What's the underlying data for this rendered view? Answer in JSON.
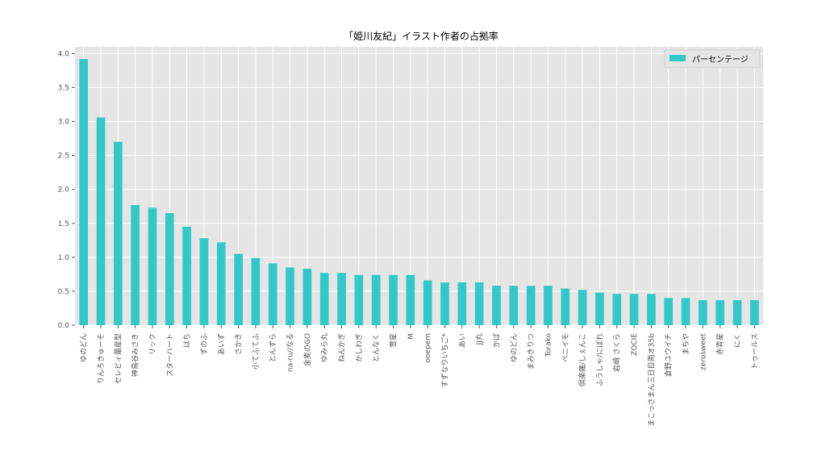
{
  "chart_data": {
    "type": "bar",
    "title": "「姫川友紀」イラスト作者の占拠率",
    "xlabel": "",
    "ylabel": "",
    "ylim": [
      0,
      4.1
    ],
    "yticks": [
      0.0,
      0.5,
      1.0,
      1.5,
      2.0,
      2.5,
      3.0,
      3.5,
      4.0
    ],
    "ytick_labels": [
      "0.0",
      "0.5",
      "1.0",
      "1.5",
      "2.0",
      "2.5",
      "3.0",
      "3.5",
      "4.0"
    ],
    "grid": true,
    "legend": {
      "position": "top-right",
      "entries": [
        "パーセンテージ"
      ]
    },
    "colors": {
      "bar": "#33c8c8",
      "plot_bg": "#e5e5e5",
      "grid": "#ffffff"
    },
    "categories": [
      "ゆのどん",
      "りんろきゅーそ",
      "セレビィ量産型",
      "神鳥谷みさき",
      "リック",
      "スターハート",
      "はち",
      "ずのふ",
      "あいず",
      "さかき",
      "小てふてふ",
      "とんずら",
      "na-ru//なる",
      "金麦のGO",
      "ゆみら丸",
      "ねんかぎ",
      "かしわぎ",
      "とんなく",
      "雪星",
      "M",
      "ooepem",
      "すずなりいちご*",
      "あい",
      "JJ丸",
      "かぱ",
      "ゆのどん",
      "まみきりつ",
      "Torako",
      "ベニイモ",
      "倶楽痛/しぇんこ",
      "ふうしゃ/にぽれ",
      "岩崎 さくら",
      "ZOCIE",
      "まこっさまん三日目南オ35b",
      "倉野ユウイチ",
      "まちや",
      "zerosweet",
      "赤青星",
      "にく",
      "トゥールス"
    ],
    "series": [
      {
        "name": "パーセンテージ",
        "values": [
          3.92,
          3.06,
          2.7,
          1.77,
          1.73,
          1.65,
          1.45,
          1.28,
          1.22,
          1.05,
          0.99,
          0.91,
          0.85,
          0.83,
          0.77,
          0.77,
          0.74,
          0.74,
          0.74,
          0.74,
          0.66,
          0.63,
          0.63,
          0.63,
          0.58,
          0.58,
          0.58,
          0.58,
          0.54,
          0.52,
          0.48,
          0.46,
          0.46,
          0.46,
          0.4,
          0.4,
          0.37,
          0.37,
          0.37,
          0.37
        ]
      }
    ]
  }
}
